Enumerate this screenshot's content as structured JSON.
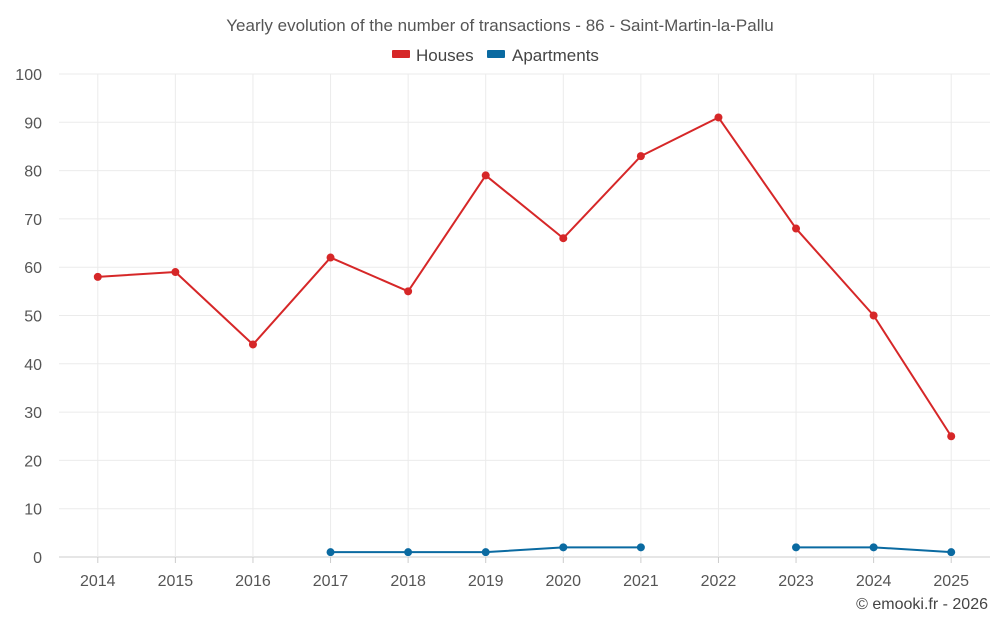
{
  "chart_data": {
    "type": "line",
    "title": "Yearly evolution of the number of transactions - 86 - Saint-Martin-la-Pallu",
    "categories": [
      "2014",
      "2015",
      "2016",
      "2017",
      "2018",
      "2019",
      "2020",
      "2021",
      "2022",
      "2023",
      "2024",
      "2025"
    ],
    "ylim": [
      0,
      100
    ],
    "yticks": [
      0,
      10,
      20,
      30,
      40,
      50,
      60,
      70,
      80,
      90,
      100
    ],
    "grid": true,
    "legend_position": "top-center",
    "series": [
      {
        "name": "Houses",
        "color": "#d62728",
        "values": [
          58,
          59,
          44,
          62,
          55,
          79,
          66,
          83,
          91,
          68,
          50,
          25
        ]
      },
      {
        "name": "Apartments",
        "color": "#0a6aa1",
        "values": [
          null,
          null,
          null,
          1,
          1,
          1,
          2,
          2,
          null,
          2,
          2,
          1
        ]
      }
    ],
    "credit": "© emooki.fr - 2026"
  }
}
